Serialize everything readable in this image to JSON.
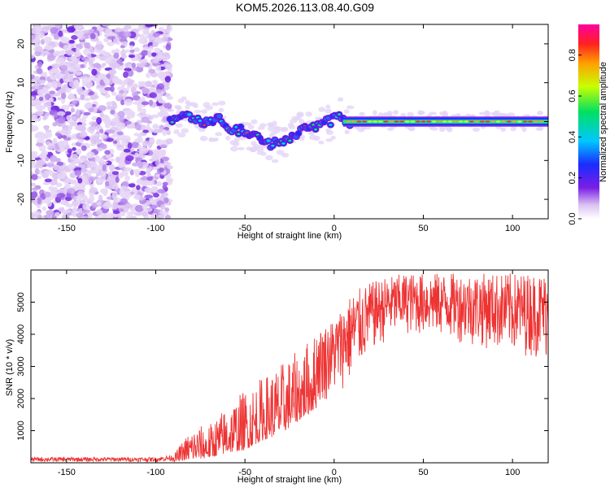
{
  "title": "KOM5.2026.113.08.40.G09",
  "chart_data": [
    {
      "id": "spectrogram",
      "type": "heatmap",
      "xlabel": "Height of straight line (km)",
      "ylabel": "Frequency (Hz)",
      "xlim": [
        -170,
        120
      ],
      "ylim": [
        -25,
        25
      ],
      "xticks": [
        -150,
        -100,
        -50,
        0,
        50,
        100
      ],
      "yticks": [
        -20,
        -10,
        0,
        10,
        20
      ],
      "colorbar": {
        "label": "Normalized spectral amplitude",
        "range": [
          0,
          0.95
        ],
        "ticks": [
          0.0,
          0.2,
          0.4,
          0.6,
          0.8
        ]
      },
      "noise_region": {
        "x": [
          -170,
          -92
        ],
        "y": [
          -25,
          25
        ]
      },
      "ridge": [
        {
          "x": -92,
          "f": 0.5
        },
        {
          "x": -85,
          "f": 1.5
        },
        {
          "x": -78,
          "f": 0.5
        },
        {
          "x": -70,
          "f": 0.0
        },
        {
          "x": -63,
          "f": 0.5
        },
        {
          "x": -58,
          "f": -2.0
        },
        {
          "x": -50,
          "f": -2.5
        },
        {
          "x": -44,
          "f": -4.0
        },
        {
          "x": -38,
          "f": -6.0
        },
        {
          "x": -32,
          "f": -5.0
        },
        {
          "x": -26,
          "f": -4.5
        },
        {
          "x": -20,
          "f": -3.0
        },
        {
          "x": -14,
          "f": -1.5
        },
        {
          "x": -8,
          "f": -1.0
        },
        {
          "x": -3,
          "f": 0.0
        },
        {
          "x": 3,
          "f": 1.0
        },
        {
          "x": 8,
          "f": 0.0
        },
        {
          "x": 15,
          "f": 0.0
        },
        {
          "x": 25,
          "f": 0.2
        },
        {
          "x": 120,
          "f": 0.0
        }
      ]
    },
    {
      "id": "snr",
      "type": "line",
      "xlabel": "Height of straight line (km)",
      "ylabel": "SNR (10 * v/v)",
      "xlim": [
        -170,
        120
      ],
      "ylim": [
        0,
        6000
      ],
      "xticks": [
        -150,
        -100,
        -50,
        0,
        50,
        100
      ],
      "yticks": [
        1000,
        2000,
        3000,
        4000,
        5000
      ],
      "color": "#ee3333",
      "envelope": [
        {
          "x": -170,
          "lo": 30,
          "hi": 170
        },
        {
          "x": -100,
          "lo": 30,
          "hi": 170
        },
        {
          "x": -90,
          "lo": 40,
          "hi": 250
        },
        {
          "x": -80,
          "lo": 100,
          "hi": 1100
        },
        {
          "x": -70,
          "lo": 150,
          "hi": 1200
        },
        {
          "x": -60,
          "lo": 300,
          "hi": 1800
        },
        {
          "x": -50,
          "lo": 400,
          "hi": 2300
        },
        {
          "x": -40,
          "lo": 700,
          "hi": 2700
        },
        {
          "x": -30,
          "lo": 900,
          "hi": 3100
        },
        {
          "x": -20,
          "lo": 1300,
          "hi": 3500
        },
        {
          "x": -10,
          "lo": 1700,
          "hi": 4100
        },
        {
          "x": 0,
          "lo": 2100,
          "hi": 4500
        },
        {
          "x": 10,
          "lo": 2500,
          "hi": 5300
        },
        {
          "x": 20,
          "lo": 3400,
          "hi": 5600
        },
        {
          "x": 30,
          "lo": 3800,
          "hi": 5800
        },
        {
          "x": 40,
          "lo": 4000,
          "hi": 5900
        },
        {
          "x": 60,
          "lo": 3900,
          "hi": 5900
        },
        {
          "x": 80,
          "lo": 3600,
          "hi": 5900
        },
        {
          "x": 100,
          "lo": 3400,
          "hi": 5900
        },
        {
          "x": 120,
          "lo": 3200,
          "hi": 5900
        }
      ]
    }
  ]
}
